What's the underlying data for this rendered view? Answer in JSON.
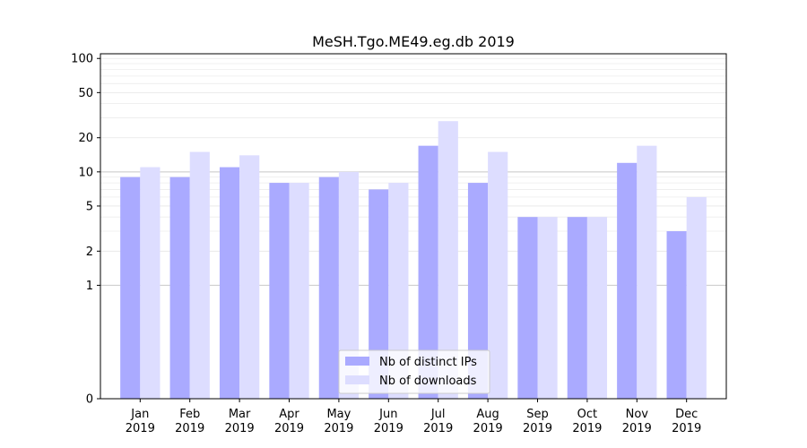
{
  "chart_data": {
    "type": "bar",
    "title": "MeSH.Tgo.ME49.eg.db 2019",
    "xlabel": "",
    "ylabel": "",
    "categories": [
      "Jan\n2019",
      "Feb\n2019",
      "Mar\n2019",
      "Apr\n2019",
      "May\n2019",
      "Jun\n2019",
      "Jul\n2019",
      "Aug\n2019",
      "Sep\n2019",
      "Oct\n2019",
      "Nov\n2019",
      "Dec\n2019"
    ],
    "series": [
      {
        "name": "Nb of distinct IPs",
        "color": "#aaaaff",
        "values": [
          9,
          9,
          11,
          8,
          9,
          7,
          17,
          8,
          4,
          4,
          12,
          3
        ]
      },
      {
        "name": "Nb of downloads",
        "color": "#ddddff",
        "values": [
          11,
          15,
          14,
          8,
          10,
          8,
          28,
          15,
          4,
          4,
          17,
          6
        ]
      }
    ],
    "yscale": "symlog",
    "ylim": [
      0,
      110
    ],
    "yticks": [
      0,
      1,
      2,
      5,
      10,
      20,
      50,
      100
    ],
    "ytick_labels": [
      "0",
      "1",
      "2",
      "5",
      "10",
      "20",
      "50",
      "100"
    ],
    "grid": true,
    "legend_position": "lower center"
  }
}
